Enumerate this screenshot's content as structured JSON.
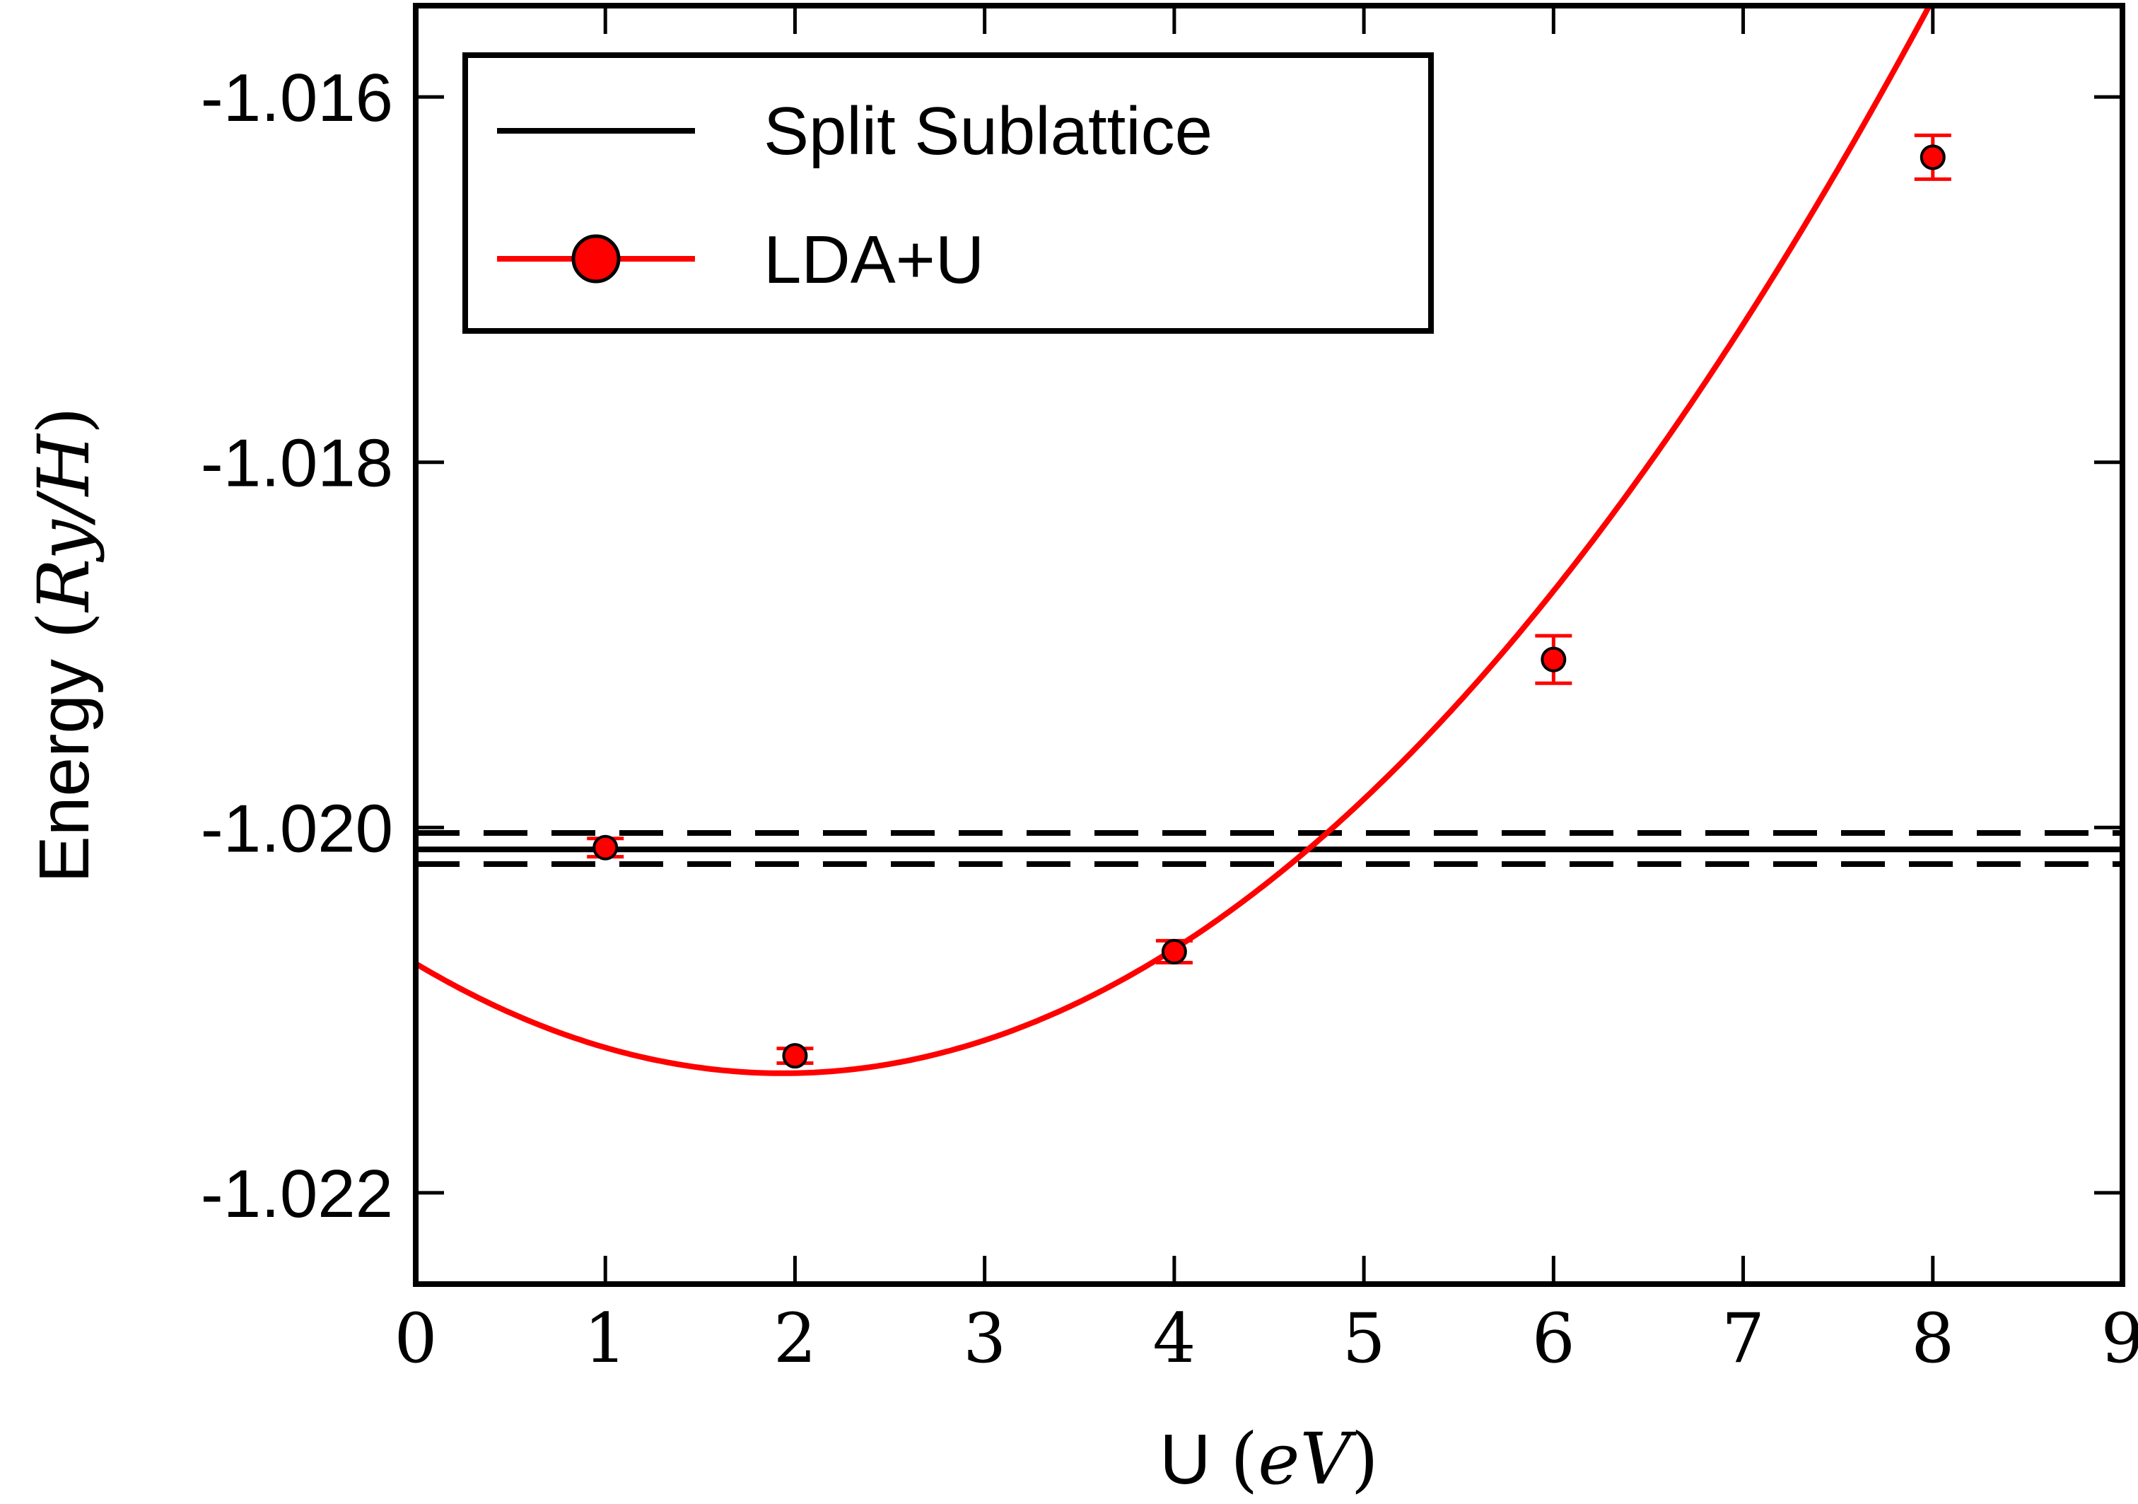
{
  "chart_data": {
    "type": "line",
    "title": "",
    "xlabel": {
      "prefix": "U",
      "open": "(",
      "math": "eV",
      "close": ")"
    },
    "ylabel": {
      "prefix": "Energy",
      "open": "(",
      "math": "Ry/H",
      "close": ")"
    },
    "xlim": [
      0,
      9
    ],
    "ylim": [
      -1.0225,
      -1.0155
    ],
    "xticks": [
      0,
      1,
      2,
      3,
      4,
      5,
      6,
      7,
      8,
      9
    ],
    "xtick_labels": [
      "0",
      "1",
      "2",
      "3",
      "4",
      "5",
      "6",
      "7",
      "8",
      "9"
    ],
    "yticks": [
      -1.022,
      -1.02,
      -1.018,
      -1.016
    ],
    "ytick_labels": [
      "-1.022",
      "-1.020",
      "-1.018",
      "-1.016"
    ],
    "grid": false,
    "legend_position": "top-left",
    "series": [
      {
        "name": "Split Sublattice",
        "kind": "hline",
        "color": "#000000",
        "value": -1.02012,
        "band": [
          -1.02003,
          -1.0202
        ]
      },
      {
        "name": "LDA+U",
        "kind": "points+fit",
        "color": "#ff0000",
        "marker_edge": "#000000",
        "x": [
          1,
          2,
          4,
          6,
          8
        ],
        "y": [
          -1.02011,
          -1.02125,
          -1.02068,
          -1.01908,
          -1.01633
        ],
        "yerr": [
          5e-05,
          4e-05,
          6e-05,
          0.00013,
          0.00012
        ],
        "fit_quadratic": {
          "a": 0.00016,
          "b": -0.00062,
          "c": -1.020745
        }
      }
    ]
  }
}
